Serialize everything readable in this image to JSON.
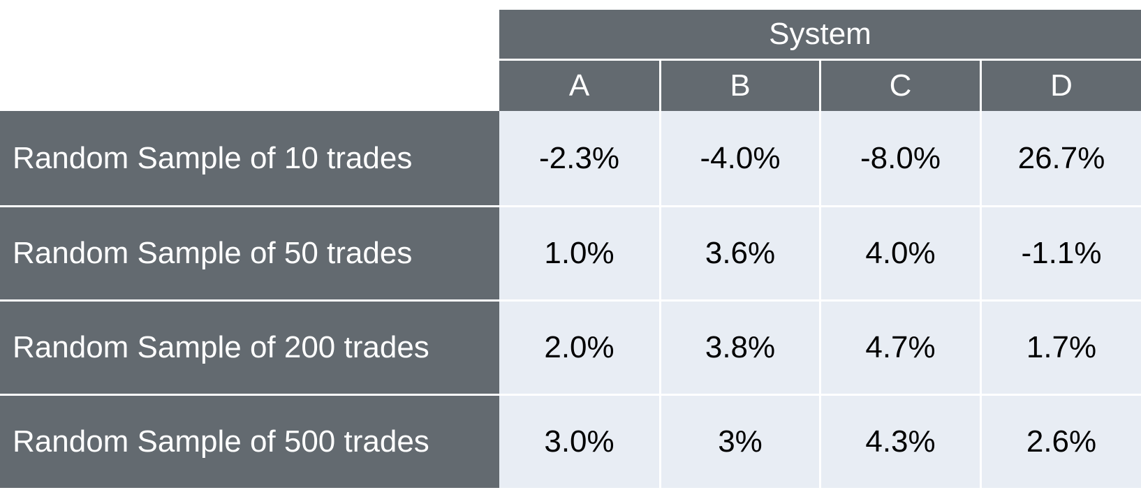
{
  "chart_data": {
    "type": "table",
    "title": "",
    "group_header": "System",
    "columns": [
      "A",
      "B",
      "C",
      "D"
    ],
    "rows": [
      {
        "label": "Random Sample of 10 trades",
        "values": [
          "-2.3%",
          "-4.0%",
          "-8.0%",
          "26.7%"
        ]
      },
      {
        "label": "Random Sample of 50 trades",
        "values": [
          "1.0%",
          "3.6%",
          "4.0%",
          "-1.1%"
        ]
      },
      {
        "label": "Random Sample of 200 trades",
        "values": [
          "2.0%",
          "3.8%",
          "4.7%",
          "1.7%"
        ]
      },
      {
        "label": "Random Sample of 500 trades",
        "values": [
          "3.0%",
          "3%",
          "4.3%",
          "2.6%"
        ]
      }
    ]
  },
  "colors": {
    "header_bg": "#636a70",
    "header_text": "#ffffff",
    "cell_bg": "#e8edf4",
    "cell_text": "#000000",
    "divider": "#ffffff"
  }
}
